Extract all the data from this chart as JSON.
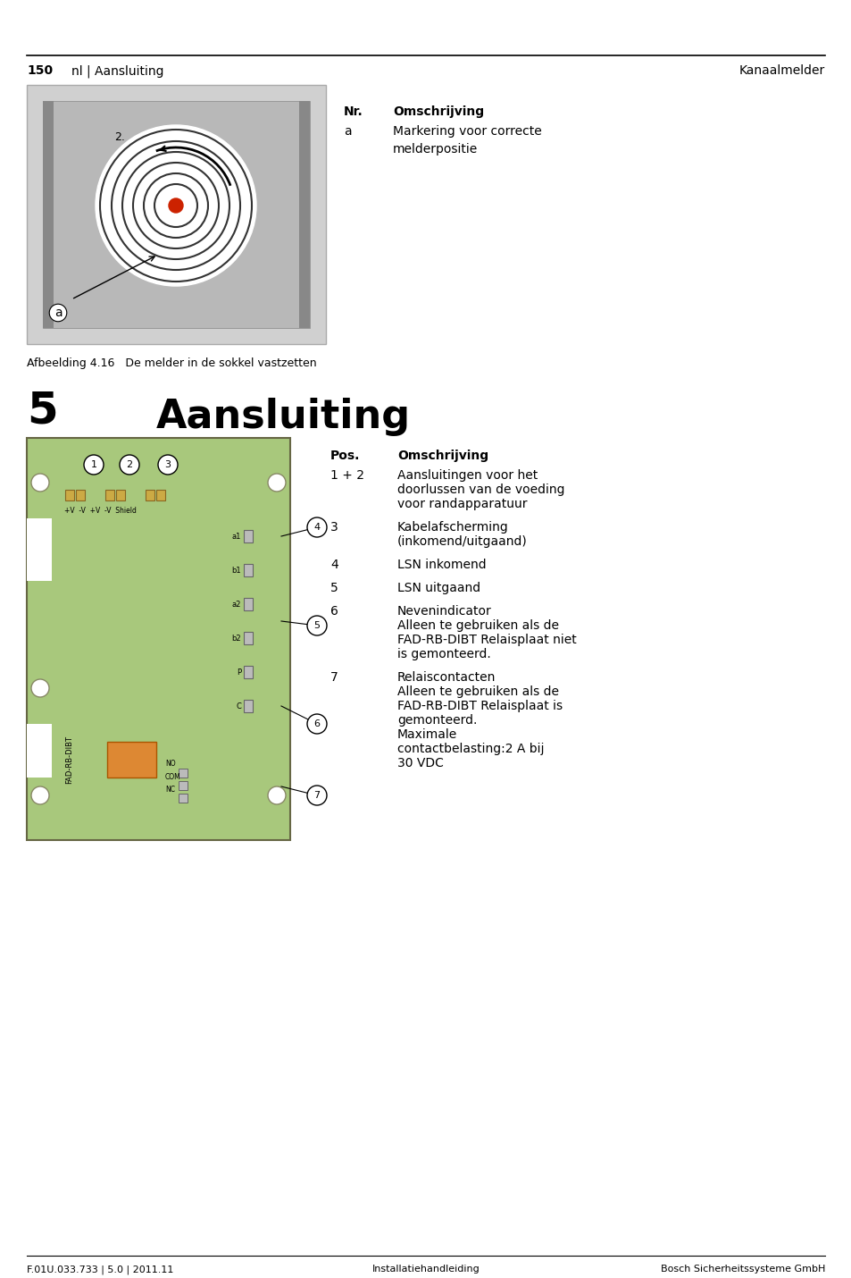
{
  "page_number": "150",
  "header_left": "nl | Aansluiting",
  "header_right": "Kanaalmelder",
  "footer_left": "F.01U.033.733 | 5.0 | 2011.11",
  "footer_center": "Installatiehandleiding",
  "footer_right": "Bosch Sicherheitssysteme GmbH",
  "fig_caption": "Afbeelding 4.16   De melder in de sokkel vastzetten",
  "section_number": "5",
  "section_title": "Aansluiting",
  "table1_col1": "Nr.",
  "table1_col2": "Omschrijving",
  "table1_rows": [
    [
      "a",
      "Markering voor correcte\nmelderpositie"
    ]
  ],
  "table2_col1": "Pos.",
  "table2_col2": "Omschrijving",
  "table2_rows": [
    [
      "1 + 2",
      "Aansluitingen voor het\ndoorlussen van de voeding\nvoor randapparatuur"
    ],
    [
      "3",
      "Kabelafscherming\n(inkomend/uitgaand)"
    ],
    [
      "4",
      "LSN inkomend"
    ],
    [
      "5",
      "LSN uitgaand"
    ],
    [
      "6",
      "Nevenindicator\nAlleen te gebruiken als de\nFAD-RB-DIBT Relaisplaat niet\nis gemonteerd."
    ],
    [
      "7",
      "Relaiscontacten\nAlleen te gebruiken als de\nFAD-RB-DIBT Relaisplaat is\ngemonteerd.\nMaximale\ncontactbelasting:2 A bij\n30 VDC"
    ]
  ],
  "bg_color": "#ffffff",
  "text_color": "#000000",
  "header_line_color": "#000000",
  "diagram_bg": "#c8c8c8",
  "board_color": "#a8c87c",
  "connector_color": "#888888"
}
